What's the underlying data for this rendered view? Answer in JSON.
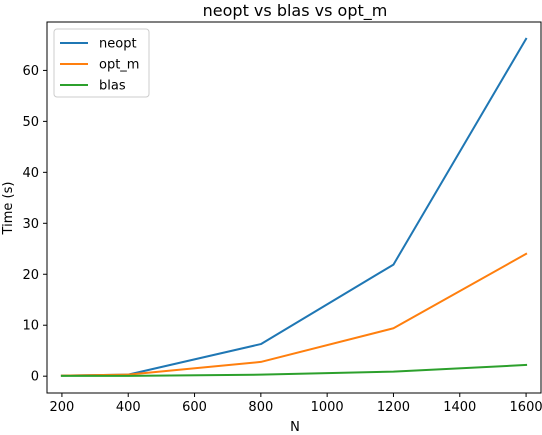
{
  "chart_data": {
    "type": "line",
    "title": "neopt vs blas vs opt_m",
    "xlabel": "N",
    "ylabel": "Time (s)",
    "x": [
      200,
      400,
      800,
      1200,
      1600
    ],
    "xlim": [
      155,
      1645
    ],
    "ylim": [
      -3.3,
      69.5
    ],
    "xticks": [
      200,
      400,
      600,
      800,
      1000,
      1200,
      1400,
      1600
    ],
    "yticks": [
      0,
      10,
      20,
      30,
      40,
      50,
      60
    ],
    "grid": false,
    "legend_position": "top-left",
    "series": [
      {
        "name": "neopt",
        "color": "#1f77b4",
        "values": [
          0.1,
          0.3,
          6.3,
          21.9,
          66.2
        ]
      },
      {
        "name": "opt_m",
        "color": "#ff7f0e",
        "values": [
          0.1,
          0.3,
          2.8,
          9.4,
          24.0
        ]
      },
      {
        "name": "blas",
        "color": "#2ca02c",
        "values": [
          0.05,
          0.05,
          0.3,
          0.9,
          2.2
        ]
      }
    ]
  }
}
